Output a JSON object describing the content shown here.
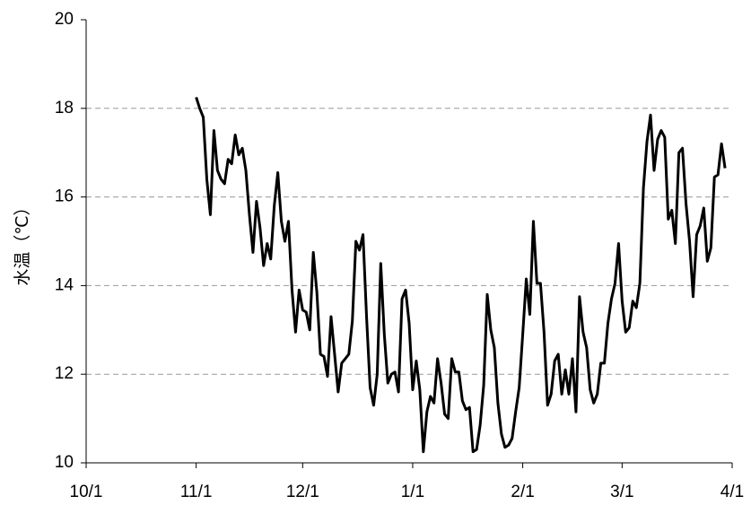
{
  "chart_data": {
    "type": "line",
    "y_label": "水温（℃）",
    "xlim": [
      0,
      182
    ],
    "xticks": [
      {
        "value": 0,
        "label": "10/1"
      },
      {
        "value": 31,
        "label": "11/1"
      },
      {
        "value": 61,
        "label": "12/1"
      },
      {
        "value": 92,
        "label": "1/1"
      },
      {
        "value": 123,
        "label": "2/1"
      },
      {
        "value": 151,
        "label": "3/1"
      },
      {
        "value": 182,
        "label": "4/1"
      }
    ],
    "ylim": [
      10,
      20
    ],
    "yticks": [
      10,
      12,
      14,
      16,
      18,
      20
    ],
    "grid": true,
    "series": [
      {
        "color": "#000000",
        "x": [
          31,
          32,
          33,
          34,
          35,
          36,
          37,
          38,
          39,
          40,
          41,
          42,
          43,
          44,
          45,
          46,
          47,
          48,
          49,
          50,
          51,
          52,
          53,
          54,
          55,
          56,
          57,
          58,
          59,
          60,
          61,
          62,
          63,
          64,
          65,
          66,
          67,
          68,
          69,
          70,
          71,
          72,
          73,
          74,
          75,
          76,
          77,
          78,
          79,
          80,
          81,
          82,
          83,
          84,
          85,
          86,
          87,
          88,
          89,
          90,
          91,
          92,
          93,
          94,
          95,
          96,
          97,
          98,
          99,
          100,
          101,
          102,
          103,
          104,
          105,
          106,
          107,
          108,
          109,
          110,
          111,
          112,
          113,
          114,
          115,
          116,
          117,
          118,
          119,
          120,
          121,
          122,
          123,
          124,
          125,
          126,
          127,
          128,
          129,
          130,
          131,
          132,
          133,
          134,
          135,
          136,
          137,
          138,
          139,
          140,
          141,
          142,
          143,
          144,
          145,
          146,
          147,
          148,
          149,
          150,
          151,
          152,
          153,
          154,
          155,
          156,
          157,
          158,
          159,
          160,
          161,
          162,
          163,
          164,
          165,
          166,
          167,
          168,
          169,
          170,
          171,
          172,
          173,
          174,
          175,
          176,
          177,
          178,
          179,
          180
        ],
        "values": [
          18.25,
          18.0,
          17.8,
          16.4,
          15.6,
          17.5,
          16.6,
          16.4,
          16.3,
          16.85,
          16.75,
          17.4,
          16.95,
          17.1,
          16.6,
          15.6,
          14.75,
          15.9,
          15.3,
          14.45,
          14.95,
          14.6,
          15.8,
          16.55,
          15.45,
          15.0,
          15.45,
          13.9,
          12.95,
          13.9,
          13.45,
          13.4,
          13.0,
          14.75,
          13.85,
          12.45,
          12.4,
          11.95,
          13.3,
          12.45,
          11.6,
          12.25,
          12.35,
          12.45,
          13.2,
          15.0,
          14.8,
          15.15,
          13.3,
          11.7,
          11.3,
          12.0,
          14.5,
          12.9,
          11.8,
          12.0,
          12.05,
          11.6,
          13.7,
          13.9,
          13.15,
          11.65,
          12.3,
          11.65,
          10.25,
          11.15,
          11.5,
          11.35,
          12.35,
          11.8,
          11.1,
          11.0,
          12.35,
          12.05,
          12.05,
          11.4,
          11.2,
          11.25,
          10.25,
          10.3,
          10.85,
          11.75,
          13.8,
          13.0,
          12.6,
          11.35,
          10.65,
          10.35,
          10.4,
          10.55,
          11.15,
          11.7,
          12.9,
          14.15,
          13.35,
          15.45,
          14.05,
          14.05,
          12.95,
          11.3,
          11.55,
          12.3,
          12.45,
          11.55,
          12.1,
          11.55,
          12.35,
          11.15,
          13.75,
          12.95,
          12.6,
          11.65,
          11.35,
          11.55,
          12.25,
          12.25,
          13.15,
          13.7,
          14.05,
          14.95,
          13.65,
          12.95,
          13.05,
          13.65,
          13.5,
          14.05,
          16.2,
          17.25,
          17.85,
          16.6,
          17.3,
          17.5,
          17.35,
          15.5,
          15.7,
          14.95,
          17.0,
          17.1,
          15.85,
          15.0,
          13.75,
          15.15,
          15.35,
          15.75,
          14.55,
          14.85,
          16.45,
          16.5,
          17.2,
          16.65
        ]
      }
    ]
  }
}
